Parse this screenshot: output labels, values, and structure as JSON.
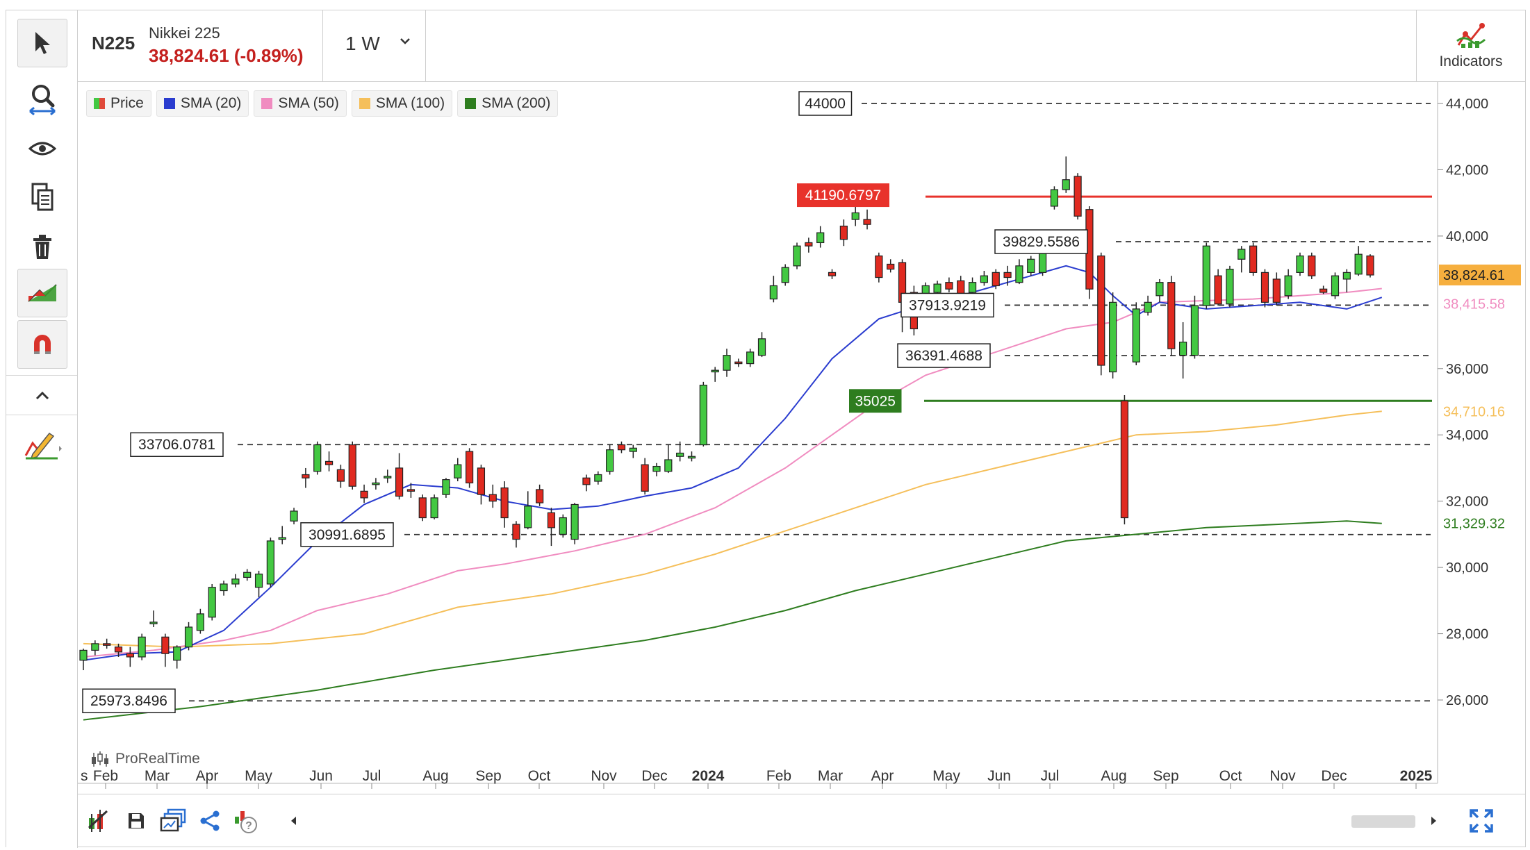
{
  "header": {
    "symbol": "N225",
    "name": "Nikkei 225",
    "price_change": "38,824.61 (-0.89%)",
    "timeframe": "1 W",
    "indicators_label": "Indicators"
  },
  "legend": [
    {
      "label": "Price",
      "color": "#43c842"
    },
    {
      "label": "SMA (20)",
      "color": "#2a3ccf"
    },
    {
      "label": "SMA (50)",
      "color": "#f08cc0"
    },
    {
      "label": "SMA (100)",
      "color": "#f5bf5a"
    },
    {
      "label": "SMA (200)",
      "color": "#2e7d1f"
    }
  ],
  "watermark": "ProRealTime",
  "colors": {
    "up": "#43c842",
    "down": "#e02a20",
    "sma20": "#2a3ccf",
    "sma50": "#f08cc0",
    "sma100": "#f5bf5a",
    "sma200": "#2e7d1f",
    "resistance": "#e8322b",
    "support": "#2e7d1f",
    "price_tag": "#f4a11c"
  },
  "toolbar_icons": [
    "cursor-icon",
    "zoom-icon",
    "eye-icon",
    "copy-icon",
    "trash-icon",
    "trend-icon",
    "magnet-icon",
    "chevron-up-icon",
    "drawing-icon"
  ],
  "bottom_icons": [
    "chart-settings-icon",
    "save-icon",
    "layout-icon",
    "share-icon",
    "help-icon",
    "scroll-left-icon",
    "scroll-right-icon",
    "fullscreen-icon"
  ],
  "chart_data": {
    "type": "candlestick",
    "y_axis_ticks": [
      "44,000",
      "42,000",
      "40,000",
      "36,000",
      "34,000",
      "32,000",
      "30,000",
      "28,000",
      "26,000"
    ],
    "ylim": [
      25000,
      45000
    ],
    "x_axis_labels": [
      "Feb",
      "Mar",
      "Apr",
      "May",
      "Jun",
      "Jul",
      "Aug",
      "Sep",
      "Oct",
      "Nov",
      "Dec",
      "2024",
      "Feb",
      "Mar",
      "Apr",
      "May",
      "Jun",
      "Jul",
      "Aug",
      "Sep",
      "Oct",
      "Nov",
      "Dec",
      "2025"
    ],
    "partial_left_label": "s",
    "price_tags": [
      {
        "label": "38,824.61",
        "value": 38824.61,
        "kind": "last"
      },
      {
        "label": "38,415.58",
        "value": 38415.58,
        "kind": "sma50"
      },
      {
        "label": "34,710.16",
        "value": 34710.16,
        "kind": "sma100"
      },
      {
        "label": "31,329.32",
        "value": 31329.32,
        "kind": "sma200"
      }
    ],
    "levels": [
      {
        "label": "44000",
        "value": 44000,
        "style": "dashed"
      },
      {
        "label": "41190.6797",
        "value": 41190.68,
        "style": "resistance"
      },
      {
        "label": "39829.5586",
        "value": 39829.56,
        "style": "dashed"
      },
      {
        "label": "37913.9219",
        "value": 37913.92,
        "style": "dashed"
      },
      {
        "label": "36391.4688",
        "value": 36391.47,
        "style": "dashed"
      },
      {
        "label": "35025",
        "value": 35025,
        "style": "support"
      },
      {
        "label": "33706.0781",
        "value": 33706.08,
        "style": "dashed"
      },
      {
        "label": "30991.6895",
        "value": 30991.69,
        "style": "dashed"
      },
      {
        "label": "25973.8496",
        "value": 25973.85,
        "style": "dashed"
      }
    ],
    "candles": [
      [
        27200,
        27500,
        26900,
        27550
      ],
      [
        27500,
        27700,
        27350,
        27800
      ],
      [
        27700,
        27650,
        27550,
        27850
      ],
      [
        27600,
        27450,
        27300,
        27700
      ],
      [
        27400,
        27300,
        27000,
        27600
      ],
      [
        27300,
        27900,
        27200,
        28000
      ],
      [
        28300,
        28350,
        28200,
        28700
      ],
      [
        27900,
        27400,
        27000,
        28000
      ],
      [
        27200,
        27600,
        26950,
        27650
      ],
      [
        27600,
        28200,
        27500,
        28350
      ],
      [
        28100,
        28600,
        28000,
        28750
      ],
      [
        28500,
        29400,
        28400,
        29500
      ],
      [
        29300,
        29500,
        29150,
        29600
      ],
      [
        29500,
        29650,
        29400,
        29800
      ],
      [
        29700,
        29850,
        29600,
        29950
      ],
      [
        29400,
        29800,
        29100,
        29900
      ],
      [
        29500,
        30800,
        29400,
        30900
      ],
      [
        30850,
        30900,
        30700,
        31250
      ],
      [
        31400,
        31700,
        31300,
        31800
      ],
      [
        32800,
        32700,
        32400,
        33000
      ],
      [
        32900,
        33700,
        32800,
        33800
      ],
      [
        33200,
        33100,
        32900,
        33500
      ],
      [
        32950,
        32600,
        32400,
        33100
      ],
      [
        33700,
        32450,
        32350,
        33800
      ],
      [
        32300,
        32100,
        31950,
        32500
      ],
      [
        32500,
        32550,
        32350,
        32700
      ],
      [
        32700,
        32750,
        32550,
        32950
      ],
      [
        33000,
        32150,
        32050,
        33450
      ],
      [
        32350,
        32300,
        32100,
        32550
      ],
      [
        32100,
        31500,
        31400,
        32200
      ],
      [
        31500,
        32100,
        31450,
        32200
      ],
      [
        32200,
        32650,
        32100,
        32700
      ],
      [
        32700,
        33100,
        32600,
        33300
      ],
      [
        33500,
        32550,
        32400,
        33600
      ],
      [
        33000,
        32200,
        31900,
        33100
      ],
      [
        32200,
        32000,
        31800,
        32500
      ],
      [
        32400,
        31500,
        31200,
        32600
      ],
      [
        31300,
        30850,
        30600,
        31400
      ],
      [
        31200,
        31850,
        31150,
        32300
      ],
      [
        32350,
        31950,
        31850,
        32500
      ],
      [
        31650,
        31200,
        30650,
        31800
      ],
      [
        31000,
        31500,
        30900,
        31600
      ],
      [
        30850,
        31900,
        30700,
        31950
      ],
      [
        32700,
        32500,
        32300,
        32800
      ],
      [
        32600,
        32800,
        32500,
        32900
      ],
      [
        32900,
        33550,
        32800,
        33700
      ],
      [
        33700,
        33550,
        33450,
        33800
      ],
      [
        33500,
        33600,
        33300,
        33700
      ],
      [
        33100,
        32300,
        32200,
        33300
      ],
      [
        32900,
        33050,
        32750,
        33150
      ],
      [
        32900,
        33250,
        32850,
        33700
      ],
      [
        33350,
        33450,
        33200,
        33800
      ],
      [
        33300,
        33350,
        33200,
        33500
      ],
      [
        33700,
        35500,
        33650,
        35600
      ],
      [
        35900,
        35950,
        35600,
        36050
      ],
      [
        35950,
        36400,
        35750,
        36600
      ],
      [
        36200,
        36150,
        36050,
        36300
      ],
      [
        36150,
        36500,
        36050,
        36600
      ],
      [
        36400,
        36900,
        36350,
        37100
      ],
      [
        38100,
        38500,
        38000,
        38800
      ],
      [
        38600,
        39050,
        38500,
        39150
      ],
      [
        39100,
        39700,
        39000,
        39800
      ],
      [
        39800,
        39700,
        39500,
        39950
      ],
      [
        39800,
        40100,
        39650,
        40300
      ],
      [
        38900,
        38800,
        38700,
        39000
      ],
      [
        40300,
        39900,
        39700,
        40500
      ],
      [
        40500,
        40700,
        40300,
        40900
      ],
      [
        40500,
        40350,
        40200,
        40800
      ],
      [
        39400,
        38750,
        38600,
        39500
      ],
      [
        39150,
        39000,
        38900,
        39300
      ],
      [
        39200,
        38000,
        37100,
        39300
      ],
      [
        38300,
        37200,
        37000,
        38500
      ],
      [
        38100,
        38500,
        38000,
        38600
      ],
      [
        38300,
        38550,
        38200,
        38650
      ],
      [
        38600,
        38400,
        38300,
        38750
      ],
      [
        38650,
        38250,
        38100,
        38800
      ],
      [
        38300,
        38600,
        38200,
        38750
      ],
      [
        38600,
        38800,
        38500,
        38950
      ],
      [
        38900,
        38500,
        38400,
        39000
      ],
      [
        38900,
        38750,
        38500,
        39100
      ],
      [
        38600,
        39100,
        38550,
        39300
      ],
      [
        38900,
        39300,
        38800,
        39400
      ],
      [
        38900,
        39900,
        38800,
        40000
      ],
      [
        40900,
        41400,
        40800,
        41500
      ],
      [
        41400,
        41700,
        41300,
        42400
      ],
      [
        41800,
        40600,
        40500,
        41900
      ],
      [
        40800,
        38400,
        38100,
        40900
      ],
      [
        39400,
        36100,
        35800,
        39500
      ],
      [
        35900,
        38000,
        35700,
        38300
      ],
      [
        35025,
        31500,
        31300,
        35200
      ],
      [
        36200,
        37800,
        36100,
        38000
      ],
      [
        37700,
        38000,
        37600,
        38200
      ],
      [
        38200,
        38600,
        38000,
        38700
      ],
      [
        38600,
        36600,
        36400,
        38800
      ],
      [
        36400,
        36800,
        35700,
        37400
      ],
      [
        36400,
        37900,
        36300,
        38200
      ],
      [
        37900,
        39700,
        37800,
        39800
      ],
      [
        38800,
        37950,
        37900,
        39000
      ],
      [
        37950,
        39000,
        37850,
        39100
      ],
      [
        39300,
        39600,
        38900,
        39700
      ],
      [
        39700,
        38900,
        38800,
        39800
      ],
      [
        38900,
        38000,
        37850,
        39000
      ],
      [
        38700,
        38000,
        37900,
        38900
      ],
      [
        38200,
        38800,
        38100,
        39000
      ],
      [
        38900,
        39400,
        38800,
        39500
      ],
      [
        39400,
        38800,
        38700,
        39500
      ],
      [
        38400,
        38300,
        38250,
        38500
      ],
      [
        38200,
        38800,
        38100,
        38900
      ],
      [
        38700,
        38900,
        38300,
        39000
      ],
      [
        38850,
        39450,
        38800,
        39700
      ],
      [
        39400,
        38824.61,
        38750,
        39450
      ]
    ],
    "sma20": [
      [
        0,
        27200
      ],
      [
        4,
        27400
      ],
      [
        8,
        27450
      ],
      [
        12,
        28100
      ],
      [
        16,
        29400
      ],
      [
        20,
        30800
      ],
      [
        24,
        31900
      ],
      [
        28,
        32500
      ],
      [
        32,
        32400
      ],
      [
        36,
        32000
      ],
      [
        40,
        31750
      ],
      [
        44,
        31850
      ],
      [
        48,
        32150
      ],
      [
        52,
        32400
      ],
      [
        56,
        33000
      ],
      [
        60,
        34500
      ],
      [
        64,
        36300
      ],
      [
        68,
        37500
      ],
      [
        72,
        37950
      ],
      [
        76,
        38300
      ],
      [
        80,
        38700
      ],
      [
        84,
        39100
      ],
      [
        86,
        38900
      ],
      [
        88,
        38200
      ],
      [
        90,
        37600
      ],
      [
        92,
        38000
      ],
      [
        96,
        37800
      ],
      [
        100,
        37900
      ],
      [
        104,
        38000
      ],
      [
        108,
        37800
      ],
      [
        111,
        38150
      ]
    ],
    "sma50": [
      [
        0,
        27300
      ],
      [
        6,
        27500
      ],
      [
        12,
        27800
      ],
      [
        16,
        28100
      ],
      [
        20,
        28700
      ],
      [
        26,
        29200
      ],
      [
        32,
        29900
      ],
      [
        36,
        30100
      ],
      [
        42,
        30500
      ],
      [
        48,
        31000
      ],
      [
        54,
        31800
      ],
      [
        60,
        33000
      ],
      [
        64,
        34000
      ],
      [
        68,
        35000
      ],
      [
        72,
        35800
      ],
      [
        78,
        36500
      ],
      [
        84,
        37200
      ],
      [
        88,
        37400
      ],
      [
        92,
        38000
      ],
      [
        96,
        38050
      ],
      [
        100,
        38100
      ],
      [
        104,
        38200
      ],
      [
        108,
        38300
      ],
      [
        111,
        38415.58
      ]
    ],
    "sma100": [
      [
        0,
        27700
      ],
      [
        8,
        27600
      ],
      [
        16,
        27700
      ],
      [
        24,
        28000
      ],
      [
        32,
        28800
      ],
      [
        40,
        29200
      ],
      [
        48,
        29800
      ],
      [
        54,
        30400
      ],
      [
        60,
        31100
      ],
      [
        66,
        31800
      ],
      [
        72,
        32500
      ],
      [
        78,
        33000
      ],
      [
        84,
        33500
      ],
      [
        90,
        34000
      ],
      [
        96,
        34100
      ],
      [
        102,
        34300
      ],
      [
        108,
        34600
      ],
      [
        111,
        34710.16
      ]
    ],
    "sma200": [
      [
        0,
        25400
      ],
      [
        10,
        25800
      ],
      [
        20,
        26300
      ],
      [
        30,
        26900
      ],
      [
        40,
        27400
      ],
      [
        48,
        27800
      ],
      [
        54,
        28200
      ],
      [
        60,
        28700
      ],
      [
        66,
        29300
      ],
      [
        72,
        29800
      ],
      [
        78,
        30300
      ],
      [
        84,
        30800
      ],
      [
        90,
        31000
      ],
      [
        96,
        31200
      ],
      [
        102,
        31300
      ],
      [
        108,
        31400
      ],
      [
        111,
        31329.32
      ]
    ]
  }
}
